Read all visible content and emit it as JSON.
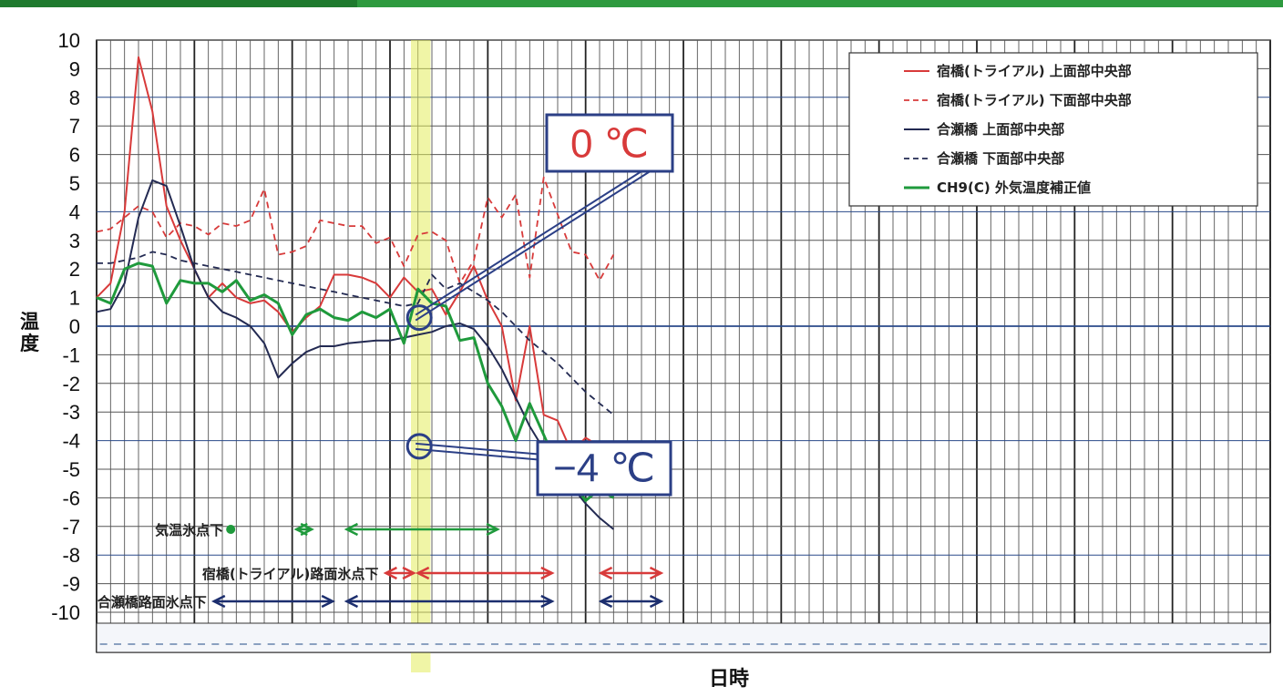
{
  "chart_data": {
    "type": "line",
    "xlabel": "日時",
    "ylabel": "温度",
    "ylim": [
      -10,
      10
    ],
    "yticks": [
      10,
      9,
      8,
      7,
      6,
      5,
      4,
      3,
      2,
      1,
      0,
      -1,
      -2,
      -3,
      -4,
      -5,
      -6,
      -7,
      -8,
      -9,
      -10
    ],
    "x_range": [
      0,
      84
    ],
    "grid": true,
    "legend_position": "top-right",
    "highlight_band": [
      22.5,
      23.9
    ],
    "series": [
      {
        "name": "宿橋(トライアル) 上面部中央部",
        "color": "#d83a3a",
        "style": "solid",
        "width": 2,
        "x": [
          0,
          1,
          2,
          3,
          4,
          5,
          6,
          7,
          8,
          9,
          10,
          11,
          12,
          13,
          14,
          15,
          16,
          17,
          18,
          19,
          20,
          21,
          22,
          23,
          24,
          25,
          26,
          27,
          28,
          29,
          30,
          31,
          32,
          33,
          34,
          35,
          36,
          37
        ],
        "y": [
          1,
          1.5,
          4,
          9.4,
          7.5,
          4.2,
          3,
          2,
          1,
          1.5,
          1,
          0.8,
          0.9,
          0.5,
          -0.2,
          0.3,
          0.7,
          1.8,
          1.8,
          1.7,
          1.5,
          1,
          1.7,
          1.2,
          1.3,
          0.4,
          1.2,
          2.1,
          0.9,
          0,
          -2.6,
          0,
          -3.1,
          -3.3,
          -4.4,
          -3.9,
          -4.2,
          -5.2
        ]
      },
      {
        "name": "宿橋(トライアル) 下面部中央部",
        "color": "#d83a3a",
        "style": "dashed",
        "width": 1.8,
        "x": [
          0,
          1,
          2,
          3,
          4,
          5,
          6,
          7,
          8,
          9,
          10,
          11,
          12,
          13,
          14,
          15,
          16,
          17,
          18,
          19,
          20,
          21,
          22,
          23,
          24,
          25,
          26,
          27,
          28,
          29,
          30,
          31,
          32,
          33,
          34,
          35,
          36,
          37
        ],
        "y": [
          3.3,
          3.4,
          3.8,
          4.2,
          4,
          3.1,
          3.6,
          3.5,
          3.2,
          3.6,
          3.5,
          3.7,
          4.8,
          2.5,
          2.6,
          2.8,
          3.7,
          3.6,
          3.5,
          3.5,
          2.9,
          3.1,
          2.1,
          3.2,
          3.3,
          3,
          1.5,
          2.3,
          4.5,
          3.8,
          4.6,
          1.7,
          5.2,
          3.9,
          2.6,
          2.5,
          1.6,
          2.5
        ]
      },
      {
        "name": "合瀬橋 上面部中央部",
        "color": "#232a52",
        "style": "solid",
        "width": 2,
        "x": [
          0,
          1,
          2,
          3,
          4,
          5,
          6,
          7,
          8,
          9,
          10,
          11,
          12,
          13,
          14,
          15,
          16,
          17,
          18,
          19,
          20,
          21,
          22,
          23,
          24,
          25,
          26,
          27,
          28,
          29,
          30,
          31,
          32,
          33,
          34,
          35,
          36,
          37
        ],
        "y": [
          0.5,
          0.6,
          1.5,
          3.8,
          5.1,
          4.9,
          3.5,
          2,
          1,
          0.5,
          0.3,
          0,
          -0.6,
          -1.8,
          -1.3,
          -0.9,
          -0.7,
          -0.7,
          -0.6,
          -0.55,
          -0.5,
          -0.5,
          -0.4,
          -0.3,
          -0.2,
          0,
          0.1,
          -0.1,
          -0.7,
          -1.5,
          -2.5,
          -3.5,
          -4.3,
          -5,
          -5.6,
          -6.2,
          -6.7,
          -7.1
        ]
      },
      {
        "name": "合瀬橋 下面部中央部",
        "color": "#232a52",
        "style": "dashed",
        "width": 1.8,
        "x": [
          0,
          1,
          2,
          3,
          4,
          5,
          6,
          7,
          8,
          9,
          10,
          11,
          12,
          13,
          14,
          15,
          16,
          17,
          18,
          19,
          20,
          21,
          22,
          23,
          24,
          25,
          26,
          27,
          28,
          29,
          30,
          31,
          32,
          33,
          34,
          35,
          36,
          37
        ],
        "y": [
          2.2,
          2.2,
          2.3,
          2.4,
          2.6,
          2.5,
          2.3,
          2.2,
          2.1,
          2,
          1.9,
          1.8,
          1.7,
          1.6,
          1.5,
          1.4,
          1.3,
          1.2,
          1.1,
          1,
          0.9,
          0.8,
          0.7,
          0.8,
          1.8,
          1.3,
          1.5,
          1.2,
          0.9,
          0.5,
          0,
          -0.5,
          -0.9,
          -1.3,
          -1.8,
          -2.3,
          -2.7,
          -3.1
        ]
      },
      {
        "name": "CH9(C) 外気温度補正値",
        "color": "#1f9a3c",
        "style": "solid",
        "width": 3,
        "x": [
          0,
          1,
          2,
          3,
          4,
          5,
          6,
          7,
          8,
          9,
          10,
          11,
          12,
          13,
          14,
          15,
          16,
          17,
          18,
          19,
          20,
          21,
          22,
          23,
          24,
          25,
          26,
          27,
          28,
          29,
          30,
          31,
          32,
          33,
          34,
          35,
          36,
          37
        ],
        "y": [
          1,
          0.8,
          2,
          2.2,
          2.1,
          0.8,
          1.6,
          1.5,
          1.5,
          1.2,
          1.6,
          0.9,
          1.1,
          0.8,
          -0.3,
          0.4,
          0.6,
          0.3,
          0.2,
          0.5,
          0.3,
          0.6,
          -0.6,
          1.3,
          0.8,
          0.7,
          -0.5,
          -0.4,
          -2,
          -2.8,
          -4,
          -2.7,
          -3.8,
          -4.9,
          -5.4,
          -6.1,
          -5.7,
          -6
        ]
      }
    ],
    "markers": [
      {
        "label": "0 ℃",
        "x": 23.1,
        "y": 0.3,
        "color": "#d83a3a"
      },
      {
        "label": "−4 ℃",
        "x": 23.1,
        "y": -4.2,
        "color": "#2b3f86"
      }
    ],
    "range_annotations": [
      {
        "label": "気温氷点下",
        "color": "#1f9a3c",
        "ranges": [
          [
            9.6,
            9.6
          ],
          [
            14.3,
            15.4
          ],
          [
            17.9,
            28.7
          ]
        ]
      },
      {
        "label": "宿橋(トライアル)路面氷点下",
        "color": "#d83a3a",
        "ranges": [
          [
            20.7,
            22.7
          ],
          [
            23.0,
            32.6
          ],
          [
            36.1,
            40.4
          ]
        ]
      },
      {
        "label": "合瀬橋路面氷点下",
        "color": "#1c2e6e",
        "ranges": [
          [
            8.4,
            16.9
          ],
          [
            17.9,
            32.6
          ],
          [
            36.1,
            40.4
          ]
        ]
      }
    ]
  }
}
